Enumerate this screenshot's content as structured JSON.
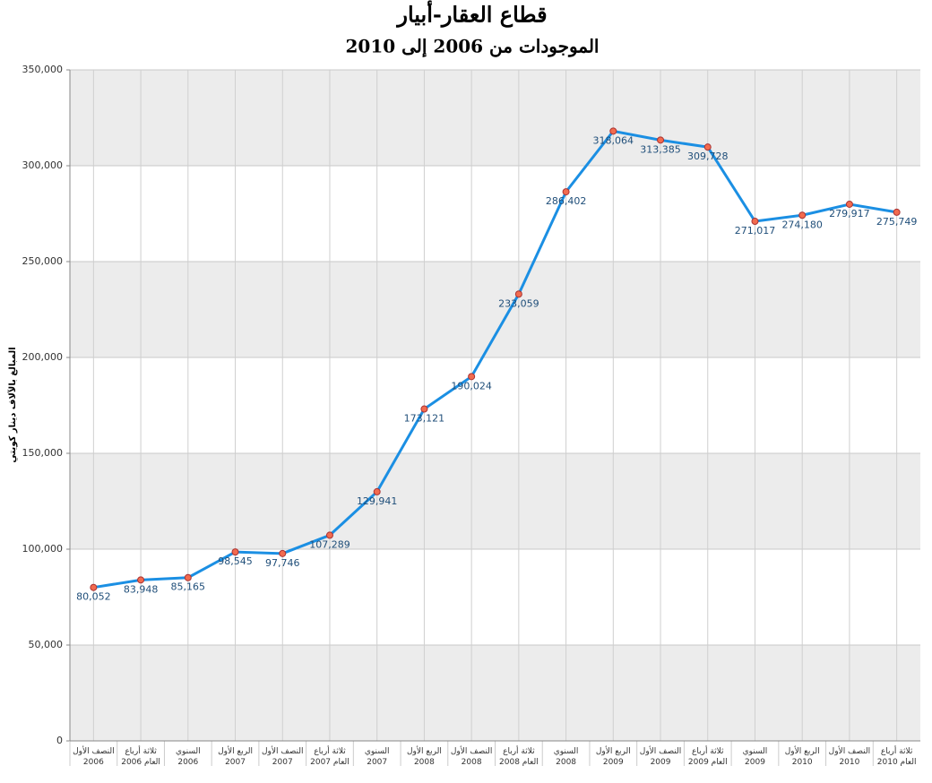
{
  "chart_data": {
    "type": "line",
    "title": "قطاع العقار-أبيار",
    "subtitle": "الموجودات من 2006 إلى 2010",
    "y_label": "المبالغ بالآلاف دينار كويتي",
    "categories": [
      "النصف الأول\n2006",
      "ثلاثة أرباع\nالعام 2006",
      "السنوي\n2006",
      "الربع الأول\n2007",
      "النصف الأول\n2007",
      "ثلاثة أرباع\nالعام 2007",
      "السنوي\n2007",
      "الربع الأول\n2008",
      "النصف الأول\n2008",
      "ثلاثة أرباع\nالعام 2008",
      "السنوي\n2008",
      "الربع الأول\n2009",
      "النصف الأول\n2009",
      "ثلاثة أرباع\nالعام 2009",
      "السنوي\n2009",
      "الربع الأول\n2010",
      "النصف الأول\n2010",
      "ثلاثة أرباع\nالعام 2010"
    ],
    "values": [
      80052,
      83948,
      85165,
      98545,
      97746,
      107289,
      129941,
      173121,
      190024,
      233059,
      286402,
      318064,
      313385,
      309728,
      271017,
      274180,
      279917,
      275749
    ],
    "value_labels": [
      "80,052",
      "83,948",
      "85,165",
      "98,545",
      "97,746",
      "107,289",
      "129,941",
      "173,121",
      "190,024",
      "233,059",
      "286,402",
      "318,064",
      "313,385",
      "309,728",
      "271,017",
      "274,180",
      "279,917",
      "275,749"
    ],
    "color": "#1b8fe3",
    "marker_color": "#f26b4f",
    "ylim": [
      0,
      350000
    ],
    "yticks": [
      {
        "value": 0,
        "label": "0"
      },
      {
        "value": 50000,
        "label": "50,000"
      },
      {
        "value": 100000,
        "label": "100,000"
      },
      {
        "value": 150000,
        "label": "150,000"
      },
      {
        "value": 200000,
        "label": "200,000"
      },
      {
        "value": 250000,
        "label": "250,000"
      },
      {
        "value": 300000,
        "label": "300,000"
      },
      {
        "value": 350000,
        "label": "350,000"
      }
    ],
    "grid": true
  }
}
